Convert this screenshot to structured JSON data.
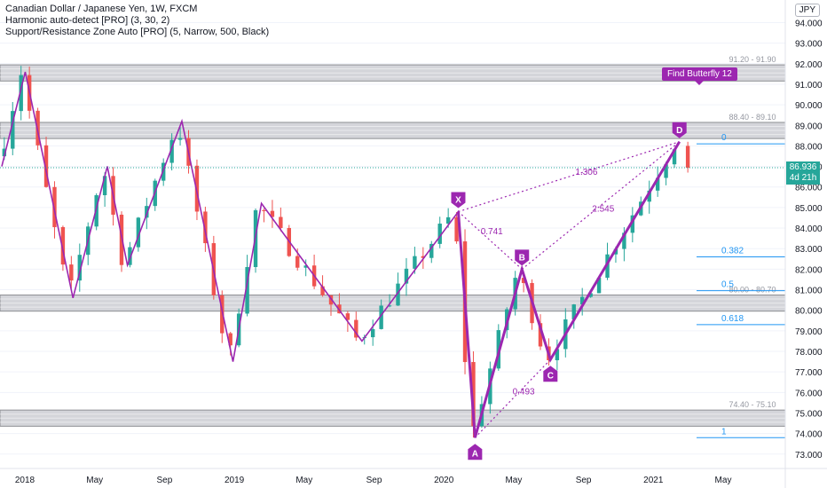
{
  "legend": {
    "title": "Canadian Dollar / Japanese Yen, 1W, FXCM",
    "indicator1": "Harmonic auto-detect [PRO] (3, 30, 2)",
    "indicator2": "Support/Resistance Zone Auto [PRO] (5, Narrow, 500, Black)"
  },
  "currency": "JPY",
  "current_price": {
    "value": "86.936",
    "countdown": "4d 21h"
  },
  "pattern_badge": "Find Butterfly 12",
  "colors": {
    "up": "#26a69a",
    "down": "#ef5350",
    "pattern": "#9c27b0",
    "fib": "#2196f3",
    "zone": "#cfd0d6",
    "zone_border": "#8e8f94"
  },
  "chart_data": {
    "type": "candlestick",
    "symbol": "CADJPY",
    "ylim": [
      72.3,
      95.1
    ],
    "y_ticks": [
      "73.000",
      "74.000",
      "75.000",
      "76.000",
      "77.000",
      "78.000",
      "79.000",
      "80.000",
      "81.000",
      "82.000",
      "83.000",
      "84.000",
      "85.000",
      "86.000",
      "87.000",
      "88.000",
      "89.000",
      "90.000",
      "91.000",
      "92.000",
      "93.000",
      "94.000"
    ],
    "x_ticks": [
      "2018",
      "May",
      "Sep",
      "2019",
      "May",
      "Sep",
      "2020",
      "May",
      "Sep",
      "2021",
      "May"
    ],
    "resistance_zones": [
      {
        "label": "91.20 - 91.90",
        "low": 91.2,
        "high": 91.9
      },
      {
        "label": "88.40 - 89.10",
        "low": 88.4,
        "high": 89.1
      },
      {
        "label": "80.00 - 80.70",
        "low": 80.0,
        "high": 80.7
      },
      {
        "label": "74.40 - 75.10",
        "low": 74.4,
        "high": 75.1
      }
    ],
    "zigzag": [
      {
        "t": -0.3,
        "p": 87.0
      },
      {
        "t": 2.5,
        "p": 91.6
      },
      {
        "t": 8.2,
        "p": 80.6
      },
      {
        "t": 12.3,
        "p": 87.0
      },
      {
        "t": 14.7,
        "p": 82.2
      },
      {
        "t": 21.2,
        "p": 89.2
      },
      {
        "t": 27.3,
        "p": 77.5
      },
      {
        "t": 30.7,
        "p": 85.2
      },
      {
        "t": 42.7,
        "p": 78.5
      },
      {
        "t": 54.2,
        "p": 84.8
      },
      {
        "t": 56.2,
        "p": 73.8
      },
      {
        "t": 61.8,
        "p": 82.0
      },
      {
        "t": 65.2,
        "p": 77.6
      },
      {
        "t": 80.6,
        "p": 88.2
      }
    ],
    "xabcd": [
      {
        "label": "X",
        "t": 54.2,
        "p": 84.8
      },
      {
        "label": "A",
        "t": 56.2,
        "p": 73.8
      },
      {
        "label": "B",
        "t": 61.8,
        "p": 82.0
      },
      {
        "label": "C",
        "t": 65.2,
        "p": 77.6
      },
      {
        "label": "D",
        "t": 80.6,
        "p": 88.2
      }
    ],
    "ratios": [
      {
        "label": "0.741",
        "t": 58.2,
        "p": 83.7
      },
      {
        "label": "1.306",
        "t": 69.5,
        "p": 86.6
      },
      {
        "label": "2.545",
        "t": 71.5,
        "p": 84.8
      },
      {
        "label": "0.493",
        "t": 62.0,
        "p": 75.9
      }
    ],
    "fib_levels": [
      {
        "label": "0",
        "p": 88.1
      },
      {
        "label": "0.382",
        "p": 82.6
      },
      {
        "label": "0.5",
        "p": 80.95
      },
      {
        "label": "0.618",
        "p": 79.3
      },
      {
        "label": "1",
        "p": 73.8
      }
    ],
    "last_price": 86.936
  }
}
